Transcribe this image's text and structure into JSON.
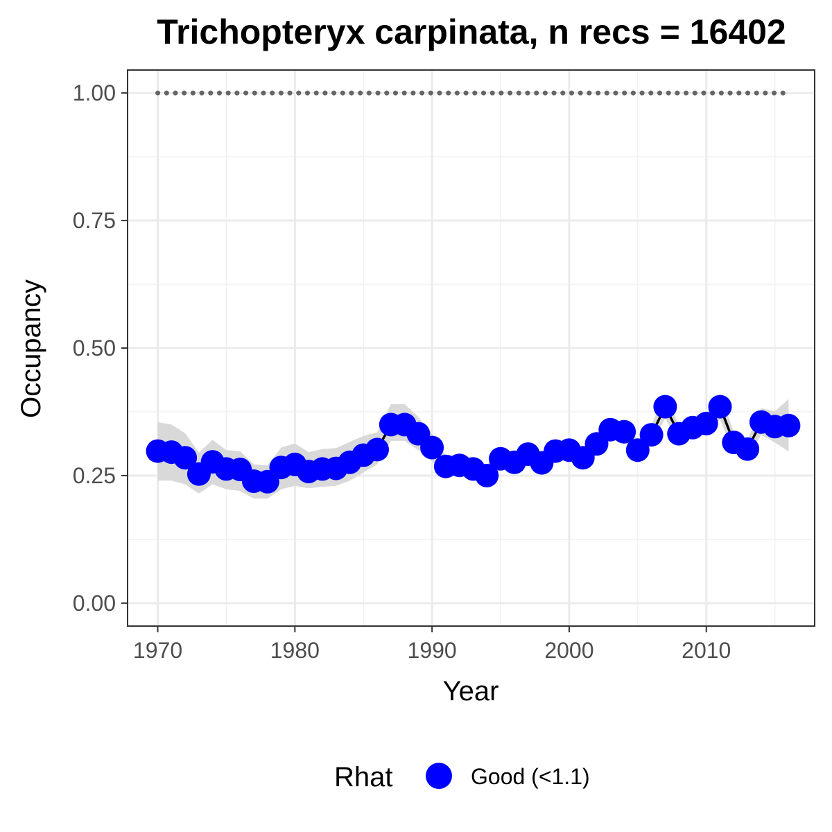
{
  "chart_data": {
    "type": "line",
    "title": "Trichopteryx carpinata, n recs = 16402",
    "xlabel": "Year",
    "ylabel": "Occupancy",
    "xlim": [
      1967.8,
      2017.9
    ],
    "ylim": [
      -0.045,
      1.045
    ],
    "x_ticks": [
      1970,
      1980,
      1990,
      2000,
      2010
    ],
    "x_tick_labels": [
      "1970",
      "1980",
      "1990",
      "2000",
      "2010"
    ],
    "y_ticks": [
      0,
      0.25,
      0.5,
      0.75,
      1.0
    ],
    "y_tick_labels": [
      "0.00",
      "0.25",
      "0.50",
      "0.75",
      "1.00"
    ],
    "grid": true,
    "legend": {
      "title": "Rhat",
      "position": "bottom",
      "entries": [
        {
          "label": "Good (<1.1)",
          "color": "#0000ff"
        }
      ]
    },
    "series": [
      {
        "name": "Good (<1.1)",
        "color": "#0000ff",
        "x": [
          1970,
          1971,
          1972,
          1973,
          1974,
          1975,
          1976,
          1977,
          1978,
          1979,
          1980,
          1981,
          1982,
          1983,
          1984,
          1985,
          1986,
          1987,
          1988,
          1989,
          1990,
          1991,
          1992,
          1993,
          1994,
          1995,
          1996,
          1997,
          1998,
          1999,
          2000,
          2001,
          2002,
          2003,
          2004,
          2005,
          2006,
          2007,
          2008,
          2009,
          2010,
          2011,
          2012,
          2013,
          2014,
          2015,
          2016
        ],
        "y": [
          0.298,
          0.296,
          0.285,
          0.253,
          0.277,
          0.263,
          0.262,
          0.239,
          0.238,
          0.266,
          0.272,
          0.258,
          0.263,
          0.264,
          0.276,
          0.29,
          0.301,
          0.35,
          0.35,
          0.332,
          0.305,
          0.268,
          0.27,
          0.263,
          0.25,
          0.283,
          0.276,
          0.292,
          0.275,
          0.298,
          0.3,
          0.285,
          0.312,
          0.34,
          0.336,
          0.3,
          0.33,
          0.385,
          0.332,
          0.344,
          0.352,
          0.385,
          0.315,
          0.302,
          0.355,
          0.346,
          0.348
        ],
        "lower": [
          0.24,
          0.24,
          0.233,
          0.215,
          0.233,
          0.223,
          0.22,
          0.205,
          0.205,
          0.223,
          0.23,
          0.225,
          0.228,
          0.23,
          0.24,
          0.256,
          0.272,
          0.318,
          0.318,
          0.3,
          0.278,
          0.25,
          0.25,
          0.243,
          0.233,
          0.262,
          0.26,
          0.272,
          0.258,
          0.278,
          0.282,
          0.27,
          0.294,
          0.32,
          0.318,
          0.284,
          0.312,
          0.362,
          0.315,
          0.326,
          0.332,
          0.36,
          0.296,
          0.286,
          0.33,
          0.315,
          0.297
        ],
        "upper": [
          0.355,
          0.35,
          0.333,
          0.295,
          0.32,
          0.3,
          0.298,
          0.272,
          0.27,
          0.305,
          0.313,
          0.296,
          0.302,
          0.304,
          0.316,
          0.328,
          0.335,
          0.39,
          0.39,
          0.365,
          0.332,
          0.29,
          0.292,
          0.285,
          0.271,
          0.305,
          0.295,
          0.314,
          0.296,
          0.32,
          0.32,
          0.305,
          0.333,
          0.362,
          0.356,
          0.32,
          0.35,
          0.408,
          0.35,
          0.365,
          0.374,
          0.41,
          0.336,
          0.32,
          0.382,
          0.376,
          0.4
        ]
      }
    ],
    "reference_line": {
      "y": 1.0,
      "style": "dotted",
      "x_from": 1970,
      "x_to": 2016,
      "color": "#666666"
    }
  }
}
